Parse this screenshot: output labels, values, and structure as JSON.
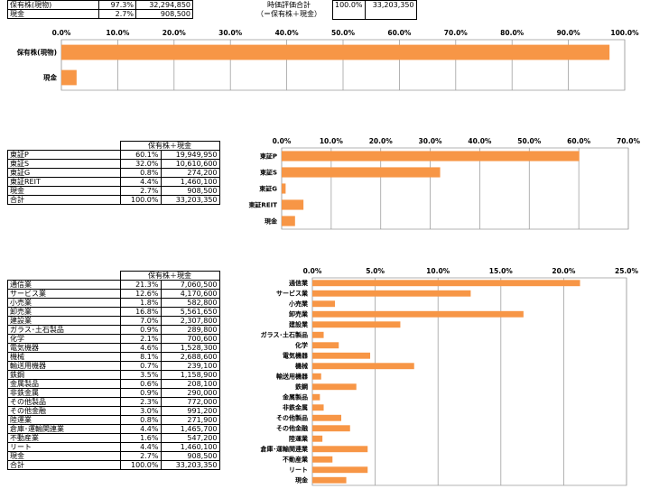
{
  "summary": {
    "rows": [
      {
        "label": "保有株(現物)",
        "pct": "97.3%",
        "value": "32,294,850"
      },
      {
        "label": "現金",
        "pct": "2.7%",
        "value": "908,500"
      }
    ],
    "total_label": "時価評価合計",
    "total_sub": "（＝保有株＋現金）",
    "total_pct": "100.0%",
    "total_value": "33,203,350"
  },
  "market_table": {
    "header": "保有株＋現金",
    "rows": [
      {
        "label": "東証P",
        "pct": "60.1%",
        "value": "19,949,950"
      },
      {
        "label": "東証S",
        "pct": "32.0%",
        "value": "10,610,600"
      },
      {
        "label": "東証G",
        "pct": "0.8%",
        "value": "274,200"
      },
      {
        "label": "東証REIT",
        "pct": "4.4%",
        "value": "1,460,100"
      },
      {
        "label": "現金",
        "pct": "2.7%",
        "value": "908,500"
      },
      {
        "label": "合計",
        "pct": "100.0%",
        "value": "33,203,350"
      }
    ]
  },
  "sector_table": {
    "header": "保有株＋現金",
    "rows": [
      {
        "label": "通信業",
        "pct": "21.3%",
        "value": "7,060,500"
      },
      {
        "label": "サービス業",
        "pct": "12.6%",
        "value": "4,170,600"
      },
      {
        "label": "小売業",
        "pct": "1.8%",
        "value": "582,800"
      },
      {
        "label": "卸売業",
        "pct": "16.8%",
        "value": "5,561,650"
      },
      {
        "label": "建設業",
        "pct": "7.0%",
        "value": "2,307,800"
      },
      {
        "label": "ガラス･土石製品",
        "pct": "0.9%",
        "value": "289,800"
      },
      {
        "label": "化学",
        "pct": "2.1%",
        "value": "700,600"
      },
      {
        "label": "電気機器",
        "pct": "4.6%",
        "value": "1,528,300"
      },
      {
        "label": "機械",
        "pct": "8.1%",
        "value": "2,688,600"
      },
      {
        "label": "輸送用機器",
        "pct": "0.7%",
        "value": "239,100"
      },
      {
        "label": "鉄鋼",
        "pct": "3.5%",
        "value": "1,158,900"
      },
      {
        "label": "金属製品",
        "pct": "0.6%",
        "value": "208,100"
      },
      {
        "label": "非鉄金属",
        "pct": "0.9%",
        "value": "290,000"
      },
      {
        "label": "その他製品",
        "pct": "2.3%",
        "value": "772,000"
      },
      {
        "label": "その他金融",
        "pct": "3.0%",
        "value": "991,200"
      },
      {
        "label": "陸運業",
        "pct": "0.8%",
        "value": "271,900"
      },
      {
        "label": "倉庫･運輸関連業",
        "pct": "4.4%",
        "value": "1,465,700"
      },
      {
        "label": "不動産業",
        "pct": "1.6%",
        "value": "547,200"
      },
      {
        "label": "リート",
        "pct": "4.4%",
        "value": "1,460,100"
      },
      {
        "label": "現金",
        "pct": "2.7%",
        "value": "908,500"
      },
      {
        "label": "合計",
        "pct": "100.0%",
        "value": "33,203,350"
      }
    ]
  },
  "colors": {
    "bar": "#f79646",
    "grid": "#a0a0a0"
  },
  "chart_data": [
    {
      "type": "bar",
      "orientation": "horizontal",
      "categories": [
        "保有株(現物)",
        "現金"
      ],
      "values": [
        97.3,
        2.7
      ],
      "xlim": [
        0,
        100
      ],
      "ticks": [
        "0.0%",
        "10.0%",
        "20.0%",
        "30.0%",
        "40.0%",
        "50.0%",
        "60.0%",
        "70.0%",
        "80.0%",
        "90.0%",
        "100.0%"
      ],
      "grid": true,
      "legend": "none"
    },
    {
      "type": "bar",
      "orientation": "horizontal",
      "categories": [
        "東証P",
        "東証S",
        "東証G",
        "東証REIT",
        "現金"
      ],
      "values": [
        60.1,
        32.0,
        0.8,
        4.4,
        2.7
      ],
      "xlim": [
        0,
        70
      ],
      "ticks": [
        "0.0%",
        "10.0%",
        "20.0%",
        "30.0%",
        "40.0%",
        "50.0%",
        "60.0%",
        "70.0%"
      ],
      "grid": true,
      "legend": "none"
    },
    {
      "type": "bar",
      "orientation": "horizontal",
      "categories": [
        "通信業",
        "サービス業",
        "小売業",
        "卸売業",
        "建設業",
        "ガラス･土石製品",
        "化学",
        "電気機器",
        "機械",
        "輸送用機器",
        "鉄鋼",
        "金属製品",
        "非鉄金属",
        "その他製品",
        "その他金融",
        "陸運業",
        "倉庫･運輸関連業",
        "不動産業",
        "リート",
        "現金"
      ],
      "values": [
        21.3,
        12.6,
        1.8,
        16.8,
        7.0,
        0.9,
        2.1,
        4.6,
        8.1,
        0.7,
        3.5,
        0.6,
        0.9,
        2.3,
        3.0,
        0.8,
        4.4,
        1.6,
        4.4,
        2.7
      ],
      "xlim": [
        0,
        25
      ],
      "ticks": [
        "0.0%",
        "5.0%",
        "10.0%",
        "15.0%",
        "20.0%",
        "25.0%"
      ],
      "grid": true,
      "legend": "none"
    }
  ]
}
